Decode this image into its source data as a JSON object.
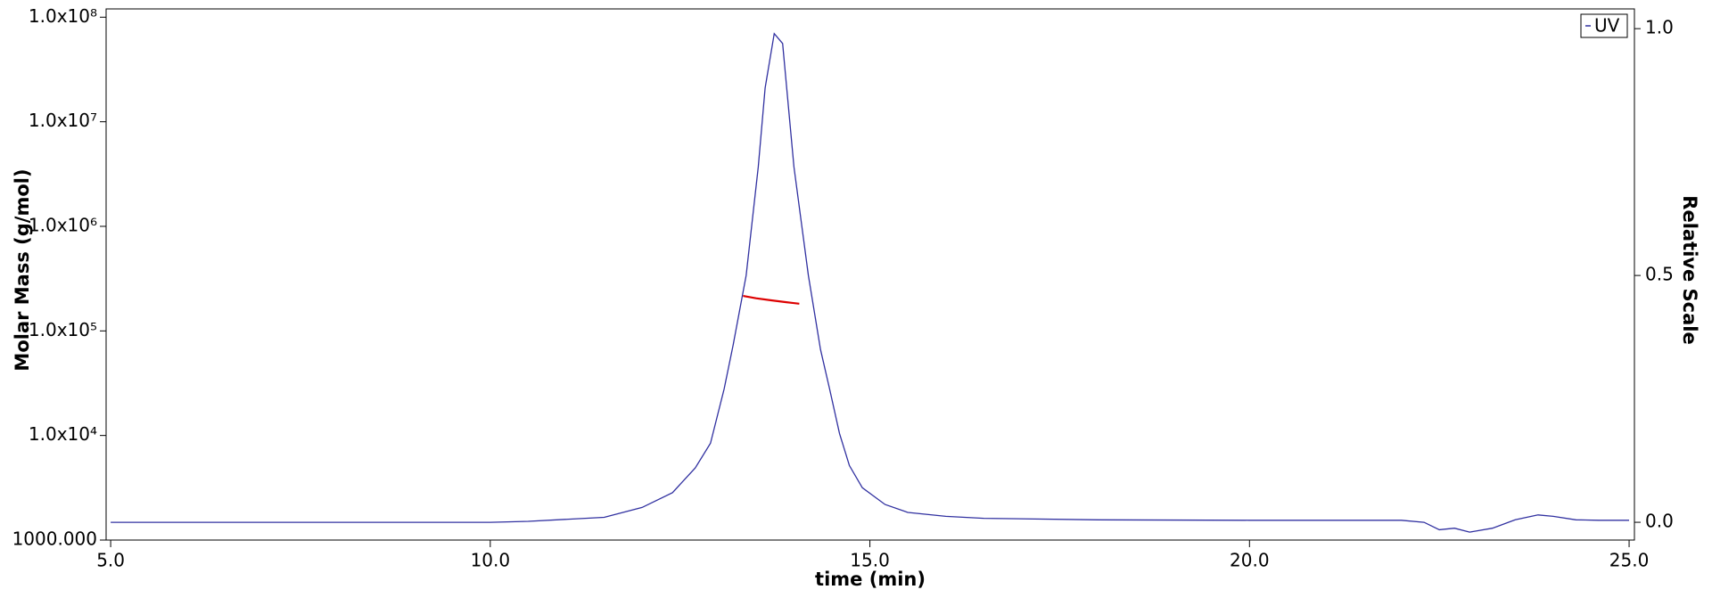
{
  "chart_data": {
    "type": "line",
    "xlabel": "time (min)",
    "ylabel": "Molar Mass (g/mol)",
    "y2label": "Relative Scale",
    "xlim": [
      4.94,
      25.07
    ],
    "xticks": [
      {
        "value": 5,
        "label": "5.0"
      },
      {
        "value": 10,
        "label": "10.0"
      },
      {
        "value": 15,
        "label": "15.0"
      },
      {
        "value": 20,
        "label": "20.0"
      },
      {
        "value": 25,
        "label": "25.0"
      }
    ],
    "ylim": [
      1000,
      120000000
    ],
    "ylog": true,
    "yticks": [
      {
        "value": 1000,
        "label": "1000.000"
      },
      {
        "value": 10000,
        "label": "1.0x10⁴"
      },
      {
        "value": 100000,
        "label": "1.0x10⁵"
      },
      {
        "value": 1000000,
        "label": "1.0x10⁶"
      },
      {
        "value": 10000000,
        "label": "1.0x10⁷"
      },
      {
        "value": 100000000,
        "label": "1.0x10⁸"
      }
    ],
    "y2lim": [
      -0.036,
      1.04
    ],
    "y2ticks": [
      {
        "value": 0,
        "label": "0.0"
      },
      {
        "value": 0.5,
        "label": "0.5"
      },
      {
        "value": 1,
        "label": "1.0"
      }
    ],
    "legend": "upper right",
    "series": [
      {
        "name": "UV",
        "color": "#3030a0",
        "axis": "y2",
        "x": [
          5,
          10,
          10.5,
          11.5,
          12.0,
          12.4,
          12.7,
          12.9,
          13.08,
          13.2,
          13.37,
          13.53,
          13.62,
          13.74,
          13.85,
          14.0,
          14.19,
          14.35,
          14.47,
          14.6,
          14.73,
          14.9,
          15.2,
          15.5,
          16,
          16.5,
          18,
          20,
          22,
          22.3,
          22.5,
          22.7,
          22.9,
          23.2,
          23.5,
          23.8,
          24.0,
          24.3,
          24.6,
          25
        ],
        "values": [
          0.0,
          0.0,
          0.002,
          0.01,
          0.03,
          0.06,
          0.11,
          0.16,
          0.27,
          0.36,
          0.5,
          0.72,
          0.88,
          0.99,
          0.97,
          0.72,
          0.5,
          0.35,
          0.27,
          0.18,
          0.115,
          0.07,
          0.036,
          0.02,
          0.012,
          0.008,
          0.005,
          0.004,
          0.004,
          0.0,
          -0.015,
          -0.012,
          -0.02,
          -0.012,
          0.005,
          0.015,
          0.012,
          0.005,
          0.004,
          0.004
        ]
      },
      {
        "color": "#dd0000",
        "x": [
          13.33,
          13.5,
          13.7,
          13.9,
          14.07
        ],
        "values": [
          216000,
          205000,
          196000,
          188000,
          182000
        ]
      }
    ]
  }
}
